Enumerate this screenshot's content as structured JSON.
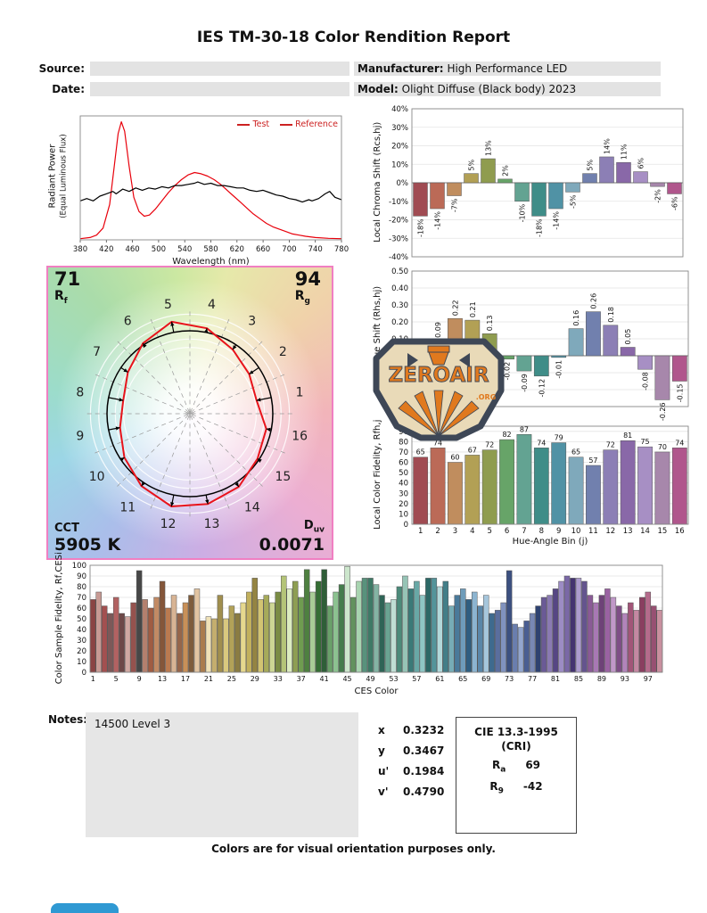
{
  "title": "IES TM-30-18 Color Rendition Report",
  "meta": {
    "source_label": "Source:",
    "source_value": "",
    "date_label": "Date:",
    "date_value": "",
    "manufacturer_label": "Manufacturer:",
    "manufacturer_value": "High Performance LED",
    "model_label": "Model:",
    "model_value": "Olight Diffuse (Black body) 2023"
  },
  "cvg": {
    "rf_value": "71",
    "rf_label": "R",
    "rf_sub": "f",
    "rg_value": "94",
    "rg_label": "R",
    "rg_sub": "g",
    "cct_label": "CCT",
    "cct_value": "5905 K",
    "duv_label": "D",
    "duv_sub": "uv",
    "duv_value": "0.0071"
  },
  "watermark": {
    "name": "ZEROAIR",
    "suffix": ".ORG"
  },
  "notes": {
    "label": "Notes:",
    "text": "14500 Level 3"
  },
  "chromaticity": {
    "rows": [
      {
        "label": "x",
        "value": "0.3232"
      },
      {
        "label": "y",
        "value": "0.3467"
      },
      {
        "label": "u'",
        "value": "0.1984"
      },
      {
        "label": "v'",
        "value": "0.4790"
      }
    ]
  },
  "cie_box": {
    "title": "CIE 13.3-1995",
    "subtitle": "(CRI)",
    "ra_label": "R",
    "ra_sub": "a",
    "ra_value": "69",
    "r9_label": "R",
    "r9_sub": "9",
    "r9_value": "-42"
  },
  "footer": "Colors are for visual orientation purposes only.",
  "hue_bin_colors": [
    "#a04b52",
    "#bb6a57",
    "#c08d5e",
    "#b2a055",
    "#8f9c4f",
    "#67a468",
    "#63a392",
    "#3f8d88",
    "#5092a5",
    "#7fa9bb",
    "#7180ae",
    "#8c7fb5",
    "#8968a8",
    "#a78fc4",
    "#a787ab",
    "#b0568c"
  ],
  "chart_data": [
    {
      "id": "spd",
      "type": "line",
      "xlabel": "Wavelength (nm)",
      "ylabel_line1": "Radiant Power",
      "ylabel_line2": "(Equal Luminous Flux)",
      "xlim": [
        380,
        780
      ],
      "ymax": 1.05,
      "xticks": [
        380,
        420,
        460,
        500,
        540,
        580,
        620,
        660,
        700,
        740,
        780
      ],
      "legend_position": "top-right",
      "series": [
        {
          "name": "Test",
          "color": "#e8000b",
          "x": [
            380,
            395,
            405,
            415,
            425,
            432,
            438,
            443,
            448,
            455,
            462,
            470,
            478,
            486,
            495,
            505,
            515,
            525,
            535,
            545,
            555,
            565,
            575,
            585,
            595,
            605,
            615,
            625,
            635,
            645,
            655,
            665,
            675,
            685,
            695,
            705,
            715,
            725,
            740,
            760,
            780
          ],
          "y": [
            0.01,
            0.02,
            0.04,
            0.1,
            0.3,
            0.62,
            0.9,
            1.0,
            0.92,
            0.62,
            0.36,
            0.24,
            0.2,
            0.21,
            0.26,
            0.33,
            0.4,
            0.46,
            0.51,
            0.55,
            0.57,
            0.56,
            0.54,
            0.51,
            0.47,
            0.42,
            0.37,
            0.32,
            0.27,
            0.22,
            0.18,
            0.14,
            0.11,
            0.09,
            0.07,
            0.05,
            0.04,
            0.03,
            0.02,
            0.013,
            0.01
          ]
        },
        {
          "name": "Reference",
          "color": "#000000",
          "x": [
            380,
            390,
            400,
            410,
            420,
            430,
            435,
            445,
            455,
            465,
            475,
            485,
            495,
            505,
            515,
            525,
            535,
            545,
            555,
            560,
            570,
            580,
            590,
            600,
            610,
            620,
            630,
            640,
            650,
            660,
            670,
            680,
            690,
            700,
            710,
            720,
            730,
            735,
            745,
            755,
            762,
            770,
            780
          ],
          "y": [
            0.33,
            0.35,
            0.33,
            0.37,
            0.39,
            0.41,
            0.39,
            0.43,
            0.41,
            0.44,
            0.42,
            0.44,
            0.43,
            0.45,
            0.44,
            0.46,
            0.46,
            0.47,
            0.48,
            0.49,
            0.47,
            0.48,
            0.46,
            0.46,
            0.45,
            0.44,
            0.44,
            0.42,
            0.41,
            0.42,
            0.4,
            0.38,
            0.37,
            0.35,
            0.34,
            0.32,
            0.34,
            0.33,
            0.35,
            0.39,
            0.41,
            0.36,
            0.34
          ]
        }
      ]
    },
    {
      "id": "chroma_shift",
      "type": "bar",
      "ylabel": "Local Chroma Shift (Rcs,hj)",
      "ylim": [
        -40,
        40
      ],
      "yticks": [
        40,
        30,
        20,
        10,
        0,
        -10,
        -20,
        -30,
        -40
      ],
      "yfmt": "pct",
      "vfmt": "pct",
      "categories": [
        1,
        2,
        3,
        4,
        5,
        6,
        7,
        8,
        9,
        10,
        11,
        12,
        13,
        14,
        15,
        16
      ],
      "values": [
        -18,
        -14,
        -7,
        5,
        13,
        2,
        -10,
        -18,
        -14,
        -5,
        5,
        14,
        11,
        6,
        -2,
        -6
      ]
    },
    {
      "id": "hue_shift",
      "type": "bar",
      "ylabel": "Local Hue Shift (Rhs,hj)",
      "ylim": [
        -0.3,
        0.5
      ],
      "yticks": [
        0.5,
        0.4,
        0.3,
        0.2,
        0.1,
        0,
        -0.1,
        -0.2,
        -0.3
      ],
      "yfmt": "dec2",
      "vfmt": "dec2",
      "categories": [
        1,
        2,
        3,
        4,
        5,
        6,
        7,
        8,
        9,
        10,
        11,
        12,
        13,
        14,
        15,
        16
      ],
      "values": [
        -0.06,
        0.09,
        0.22,
        0.21,
        0.13,
        -0.02,
        -0.09,
        -0.12,
        -0.01,
        0.16,
        0.26,
        0.18,
        0.05,
        -0.08,
        -0.26,
        -0.15
      ]
    },
    {
      "id": "local_fidelity",
      "type": "bar",
      "ylabel": "Local Color Fidelity, Rfh,j",
      "xlabel": "Hue-Angle Bin (j)",
      "ylim": [
        0,
        95
      ],
      "yticks": [
        0,
        10,
        20,
        30,
        40,
        50,
        60,
        70,
        80,
        90
      ],
      "yfmt": "int",
      "vfmt": "int",
      "categories": [
        1,
        2,
        3,
        4,
        5,
        6,
        7,
        8,
        9,
        10,
        11,
        12,
        13,
        14,
        15,
        16
      ],
      "values": [
        65,
        74,
        60,
        67,
        72,
        82,
        87,
        74,
        79,
        65,
        57,
        72,
        81,
        75,
        70,
        74
      ]
    },
    {
      "id": "ces",
      "type": "bar",
      "ylabel": "Color Sample Fidelity, Rf,CESi",
      "xlabel": "CES Color",
      "ylim": [
        0,
        100
      ],
      "yticks": [
        0,
        10,
        20,
        30,
        40,
        50,
        60,
        70,
        80,
        90,
        100
      ],
      "yfmt": "int",
      "xticks": [
        1,
        5,
        9,
        13,
        17,
        21,
        25,
        29,
        33,
        37,
        41,
        45,
        49,
        53,
        57,
        61,
        65,
        69,
        73,
        77,
        81,
        85,
        89,
        93,
        97
      ],
      "values": [
        68,
        75,
        62,
        55,
        70,
        55,
        52,
        65,
        95,
        68,
        60,
        70,
        85,
        60,
        72,
        55,
        65,
        72,
        78,
        48,
        52,
        50,
        72,
        50,
        62,
        55,
        65,
        75,
        88,
        68,
        72,
        65,
        75,
        90,
        78,
        85,
        70,
        96,
        75,
        85,
        96,
        62,
        75,
        82,
        99,
        70,
        85,
        88,
        88,
        82,
        72,
        65,
        68,
        80,
        90,
        78,
        85,
        72,
        88,
        88,
        80,
        85,
        62,
        72,
        78,
        68,
        75,
        62,
        72,
        55,
        58,
        65,
        95,
        45,
        42,
        48,
        55,
        62,
        70,
        72,
        78,
        85,
        90,
        88,
        88,
        85,
        72,
        65,
        72,
        78,
        70,
        62,
        55,
        65,
        58,
        70,
        75,
        62,
        58
      ],
      "colors": [
        "#8a4444",
        "#c79a94",
        "#a35050",
        "#7c5858",
        "#b26262",
        "#6d4848",
        "#d0a8a2",
        "#95524e",
        "#474747",
        "#b4806e",
        "#a05c42",
        "#c28a64",
        "#84563a",
        "#ba7a50",
        "#d8b494",
        "#96664a",
        "#c89058",
        "#7e5c3c",
        "#e2c4a2",
        "#aa7c4e",
        "#f0e2b8",
        "#c4ae6e",
        "#a08e4e",
        "#d9c87e",
        "#b2a258",
        "#8a7c42",
        "#e6d88e",
        "#c2b05c",
        "#948442",
        "#d2c472",
        "#a6aa5a",
        "#ccd694",
        "#7a8c44",
        "#b4c478",
        "#dcecc0",
        "#8e9e52",
        "#6f9c50",
        "#4e8040",
        "#a9cc96",
        "#356e34",
        "#2f5e38",
        "#6aa06a",
        "#8cc290",
        "#447c4c",
        "#cce6cc",
        "#62925e",
        "#a8d4b0",
        "#58927c",
        "#3e7a66",
        "#84b4a4",
        "#2f6456",
        "#6aa492",
        "#c0ded4",
        "#4c8a7a",
        "#96c4b6",
        "#3a7a78",
        "#68a8a6",
        "#8ec6c4",
        "#2c6866",
        "#54949a",
        "#b2d8da",
        "#427e88",
        "#76acb6",
        "#4a7a9a",
        "#6e9cba",
        "#2f5e80",
        "#8cb4d0",
        "#5a86a8",
        "#a6c6dc",
        "#3e6a8e",
        "#5a6e9e",
        "#8092be",
        "#3c5080",
        "#6a7eae",
        "#93a6ce",
        "#4a5e92",
        "#7888b4",
        "#2e4270",
        "#6a5a96",
        "#8a7ab2",
        "#564684",
        "#9c8cc4",
        "#7a68a6",
        "#443470",
        "#ac9cce",
        "#64548e",
        "#8a5a96",
        "#a878b4",
        "#6e4278",
        "#9a62a2",
        "#c098c8",
        "#7e4e86",
        "#b284ba",
        "#a25578",
        "#c488a2",
        "#8a3e60",
        "#b56b8c",
        "#975072",
        "#c9909f"
      ]
    }
  ]
}
